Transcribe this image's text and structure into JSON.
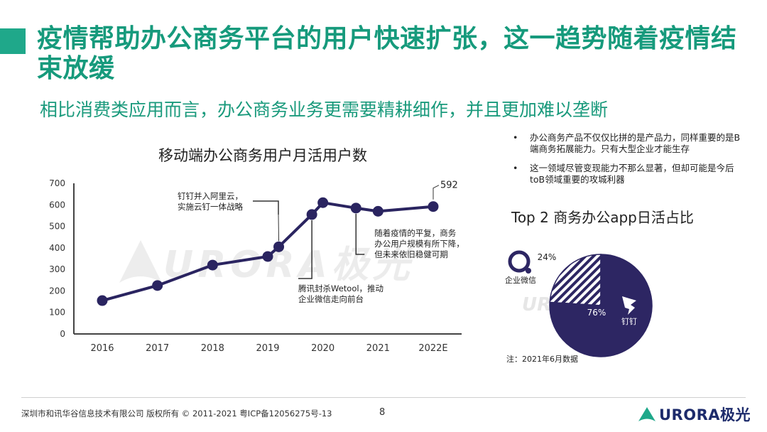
{
  "title": "疫情帮助办公商务平台的用户快速扩张，这一趋势随着疫情结束放缓",
  "subtitle": "相比消费类应用而言，办公商务业务更需要精耕细作，并且更加难以垄断",
  "watermark": {
    "brand": "URORA",
    "cn": "极光"
  },
  "colors": {
    "accent": "#1fa88a",
    "title": "#169a7c",
    "line": "#2a2460",
    "pie": "#2d2663"
  },
  "bullets": [
    "办公商务产品不仅仅比拼的是产品力，同样重要的是B端商务拓展能力。只有大型企业才能生存",
    "这一领域尽管变现能力不那么显著，但却可能是今后toB领域重要的攻城利器"
  ],
  "pie_title": "Top 2 商务办公app日活占比",
  "note": "注：2021年6月数据",
  "footer": {
    "copyright": "深圳市和讯华谷信息技术有限公司 版权所有 © 2011-2021 粤ICP备12056275号-13",
    "page": "8",
    "logo_text": "URORA极光"
  },
  "chart_data": [
    {
      "type": "line",
      "title": "移动端办公商务用户月活用户数",
      "categories": [
        "2016",
        "2017",
        "2018",
        "2019",
        "2020",
        "2021",
        "2022E"
      ],
      "x": [
        0,
        1,
        2,
        3,
        3.2,
        3.8,
        4,
        4.6,
        5,
        6
      ],
      "values": [
        155,
        225,
        320,
        360,
        405,
        555,
        610,
        585,
        570,
        592
      ],
      "ylim": [
        0,
        700
      ],
      "yticks": [
        0,
        100,
        200,
        300,
        400,
        500,
        600,
        700
      ],
      "end_label": "592",
      "annotations": [
        "钉钉并入阿里云，实施云钉一体战略",
        "腾讯封杀Wetool，推动企业微信走向前台",
        "随着疫情的平复，商务办公用户规模有所下降，但未来依旧稳健可期"
      ]
    },
    {
      "type": "pie",
      "title": "Top 2 商务办公app日活占比",
      "slices": [
        {
          "name": "企业微信",
          "value": 24,
          "label": "24%"
        },
        {
          "name": "钉钉",
          "value": 76,
          "label": "76%"
        }
      ]
    }
  ]
}
